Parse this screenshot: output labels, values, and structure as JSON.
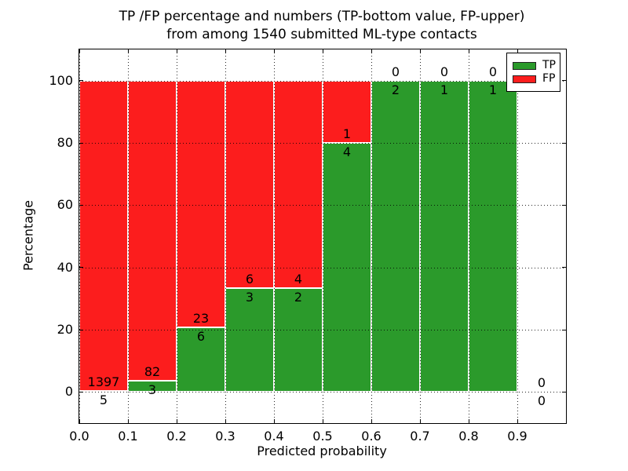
{
  "title": {
    "line1": "TP /FP percentage and numbers (TP-bottom value, FP-upper)",
    "line2": "from among 1540 submitted ML-type contacts"
  },
  "axes": {
    "xlabel": "Predicted probability",
    "ylabel": "Percentage"
  },
  "legend": {
    "position": "upper right",
    "items": [
      {
        "label": "TP",
        "color": "#2b9a2b"
      },
      {
        "label": "FP",
        "color": "#fc1d1d"
      }
    ]
  },
  "chart_data": {
    "type": "bar",
    "stacked": true,
    "title": "TP /FP percentage and numbers (TP-bottom value, FP-upper) from among 1540 submitted ML-type contacts",
    "xlabel": "Predicted probability",
    "ylabel": "Percentage",
    "total_contacts": 1540,
    "xlim": [
      0.0,
      1.0
    ],
    "ylim": [
      -10,
      110
    ],
    "grid": true,
    "bin_width": 0.1,
    "bin_starts": [
      0.0,
      0.1,
      0.2,
      0.3,
      0.4,
      0.5,
      0.6,
      0.7,
      0.8,
      0.9
    ],
    "xticks": [
      "0.0",
      "0.1",
      "0.2",
      "0.3",
      "0.4",
      "0.5",
      "0.6",
      "0.7",
      "0.8",
      "0.9"
    ],
    "yticks": [
      0,
      20,
      40,
      60,
      80,
      100
    ],
    "series": [
      {
        "name": "TP",
        "color": "#2b9a2b",
        "counts": [
          5,
          3,
          6,
          3,
          2,
          4,
          2,
          1,
          1,
          0
        ]
      },
      {
        "name": "FP",
        "color": "#fc1d1d",
        "counts": [
          1397,
          82,
          23,
          6,
          4,
          1,
          0,
          0,
          0,
          0
        ]
      }
    ],
    "tp_percentages": [
      0.36,
      3.53,
      20.69,
      33.33,
      33.33,
      80.0,
      100.0,
      100.0,
      100.0,
      null
    ]
  }
}
